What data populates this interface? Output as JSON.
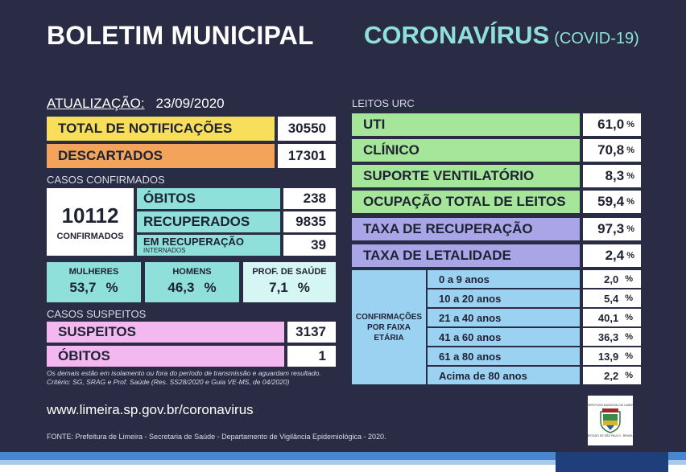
{
  "header": {
    "title": "BOLETIM MUNICIPAL",
    "subtitle": "CORONAVÍRUS",
    "subtitle_tag": "(COVID-19)"
  },
  "update": {
    "label": "ATUALIZAÇÃO:",
    "date": "23/09/2020"
  },
  "totals": [
    {
      "label": "TOTAL DE NOTIFICAÇÕES",
      "value": "30550"
    },
    {
      "label": "DESCARTADOS",
      "value": "17301"
    }
  ],
  "confirmed": {
    "section_label": "CASOS CONFIRMADOS",
    "total": "10112",
    "total_label": "CONFIRMADOS",
    "obitos_label": "ÓBITOS",
    "obitos_value": "238",
    "recuperados_label": "RECUPERADOS",
    "recuperados_value": "9835",
    "em_recuperacao_label": "EM RECUPERAÇÃO",
    "em_recuperacao_sub": "INTERNADOS",
    "em_recuperacao_value": "39"
  },
  "demographics": [
    {
      "label": "MULHERES",
      "value": "53,7",
      "unit": "%"
    },
    {
      "label": "HOMENS",
      "value": "46,3",
      "unit": "%"
    },
    {
      "label": "PROF. DE SAÚDE",
      "value": "7,1",
      "unit": "%"
    }
  ],
  "suspected": {
    "section_label": "CASOS SUSPEITOS",
    "suspeitos_label": "SUSPEITOS",
    "suspeitos_value": "3137",
    "obitos_label": "ÓBITOS",
    "obitos_value": "1"
  },
  "notes": [
    "Os demais estão em isolamento ou fora do período de transmissão e aguardam resultado.",
    "Critério: SG, SRAG e Prof. Saúde (Res. SS28/2020 e Guia VE-MS, de 04/2020)"
  ],
  "leitos": {
    "section_label": "LEITOS URC",
    "rows": [
      {
        "label": "UTI",
        "value": "61,0",
        "unit": "%"
      },
      {
        "label": "CLÍNICO",
        "value": "70,8",
        "unit": "%"
      },
      {
        "label": "SUPORTE VENTILATÓRIO",
        "value": "8,3",
        "unit": "%"
      },
      {
        "label": "OCUPAÇÃO TOTAL DE LEITOS",
        "value": "59,4",
        "unit": "%"
      }
    ]
  },
  "rates": [
    {
      "label": "TAXA DE RECUPERAÇÃO",
      "value": "97,3",
      "unit": "%"
    },
    {
      "label": "TAXA DE LETALIDADE",
      "value": "2,4",
      "unit": "%"
    }
  ],
  "age": {
    "title_lines": [
      "CONFIRMAÇÕES",
      "POR FAIXA",
      "ETÁRIA"
    ],
    "rows": [
      {
        "label": "0 a 9 anos",
        "value": "2,0",
        "unit": "%"
      },
      {
        "label": "10 a 20 anos",
        "value": "5,4",
        "unit": "%"
      },
      {
        "label": "21 a 40 anos",
        "value": "40,1",
        "unit": "%"
      },
      {
        "label": "41 a 60 anos",
        "value": "36,3",
        "unit": "%"
      },
      {
        "label": "61 a 80 anos",
        "value": "13,9",
        "unit": "%"
      },
      {
        "label": "Acima de 80 anos",
        "value": "2,2",
        "unit": "%"
      }
    ]
  },
  "website": "www.limeira.sp.gov.br/coronavirus",
  "source": "FONTE: Prefeitura de Limeira - Secretaria de Saúde - Departamento de Vigilância Epidemiológica - 2020.",
  "logo": {
    "top_text": "PREFEITURA MUNICIPAL DE LIMEIRA",
    "bottom_text": "ESTADO DE SÃO PAULO - BRASIL"
  },
  "colors": {
    "background": "#2a2c45",
    "yellow": "#f7df5c",
    "orange": "#f3a45a",
    "teal": "#8fe0da",
    "pink": "#f3b8f0",
    "green": "#a5e69a",
    "purple": "#a8a6e6",
    "blue": "#9bd2f2"
  }
}
